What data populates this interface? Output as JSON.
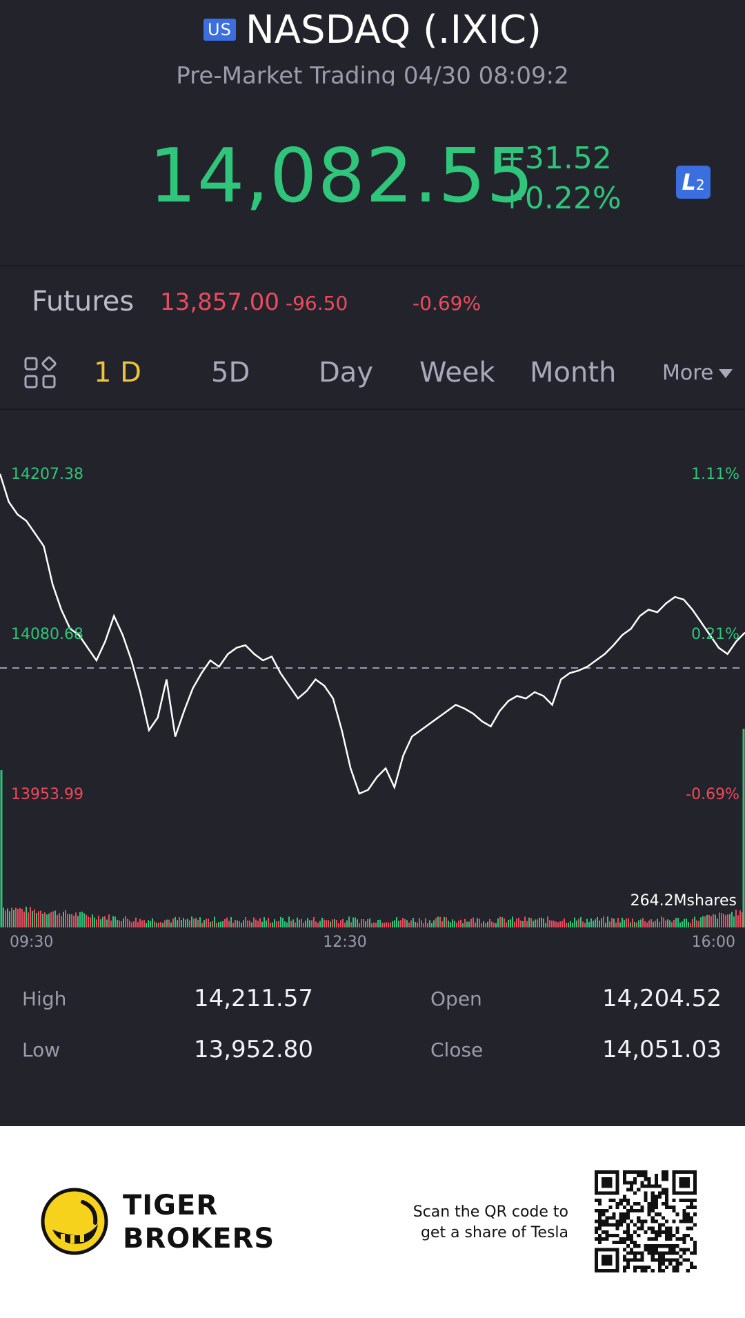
{
  "header": {
    "market_badge": "US",
    "title": "NASDAQ (.IXIC)",
    "subtitle": "Pre-Market Trading 04/30 08:09:2"
  },
  "quote": {
    "price": "14,082.55",
    "change": "+31.52",
    "change_pct": "+0.22%",
    "level_badge_main": "L",
    "level_badge_sub": "2"
  },
  "futures": {
    "label": "Futures",
    "price": "13,857.00",
    "change": "-96.50",
    "change_pct": "-0.69%"
  },
  "tabs": {
    "items": [
      "1 D",
      "5D",
      "Day",
      "Week",
      "Month"
    ],
    "active": "1 D",
    "more_label": "More"
  },
  "chart_data": {
    "type": "line",
    "y_labels_left": [
      "14207.38",
      "14080.68",
      "13953.99"
    ],
    "y_labels_right": [
      "1.11%",
      "0.21%",
      "-0.69%"
    ],
    "x_labels": [
      "09:30",
      "12:30",
      "16:00"
    ],
    "reference_line": 14051.03,
    "ylim": [
      13953.99,
      14207.38
    ],
    "volume_label": "264.2Mshares",
    "series": [
      {
        "values": [
          14207,
          14185,
          14175,
          14170,
          14160,
          14150,
          14120,
          14100,
          14085,
          14080,
          14070,
          14060,
          14075,
          14095,
          14080,
          14060,
          14035,
          14005,
          14015,
          14045,
          14000,
          14020,
          14038,
          14050,
          14060,
          14055,
          14065,
          14070,
          14072,
          14065,
          14060,
          14063,
          14050,
          14040,
          14030,
          14036,
          14045,
          14040,
          14030,
          14005,
          13975,
          13955,
          13958,
          13968,
          13975,
          13960,
          13985,
          14000,
          14005,
          14010,
          14015,
          14020,
          14025,
          14022,
          14018,
          14012,
          14008,
          14020,
          14028,
          14032,
          14030,
          14035,
          14032,
          14025,
          14045,
          14050,
          14052,
          14055,
          14060,
          14065,
          14072,
          14080,
          14085,
          14095,
          14100,
          14098,
          14105,
          14110,
          14108,
          14100,
          14090,
          14080,
          14070,
          14065,
          14075,
          14082
        ]
      }
    ]
  },
  "stats": {
    "high_label": "High",
    "high_value": "14,211.57",
    "open_label": "Open",
    "open_value": "14,204.52",
    "low_label": "Low",
    "low_value": "13,952.80",
    "close_label": "Close",
    "close_value": "14,051.03"
  },
  "footer": {
    "brand_line1": "TIGER",
    "brand_line2": "BROKERS",
    "promo_line1": "Scan the QR code to",
    "promo_line2": "get a share of Tesla"
  },
  "colors": {
    "up": "#2fc57a",
    "down": "#ec4b5e",
    "active_tab": "#f0c43a",
    "background": "#22232b"
  },
  "icons": {
    "layout": "grid-layout-icon",
    "logo": "tiger-logo-icon",
    "qr": "qr-code-icon"
  }
}
